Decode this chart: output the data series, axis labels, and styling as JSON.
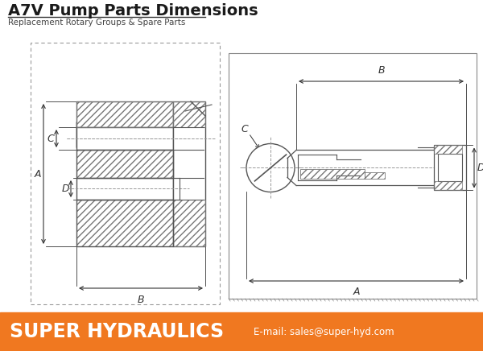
{
  "title": "A7V Pump Parts Dimensions",
  "subtitle": "Replacement Rotary Groups & Spare Parts",
  "footer_text": "SUPER HYDRAULICS",
  "footer_email": "E-mail: sales@super-hyd.com",
  "footer_bg": "#F07820",
  "footer_text_color": "#FFFFFF",
  "title_color": "#1a1a1a",
  "subtitle_color": "#444444",
  "bg_color": "#FFFFFF",
  "drawing_color": "#555555",
  "dim_color": "#333333",
  "hatch_color": "#777777",
  "centerline_color": "#999999"
}
